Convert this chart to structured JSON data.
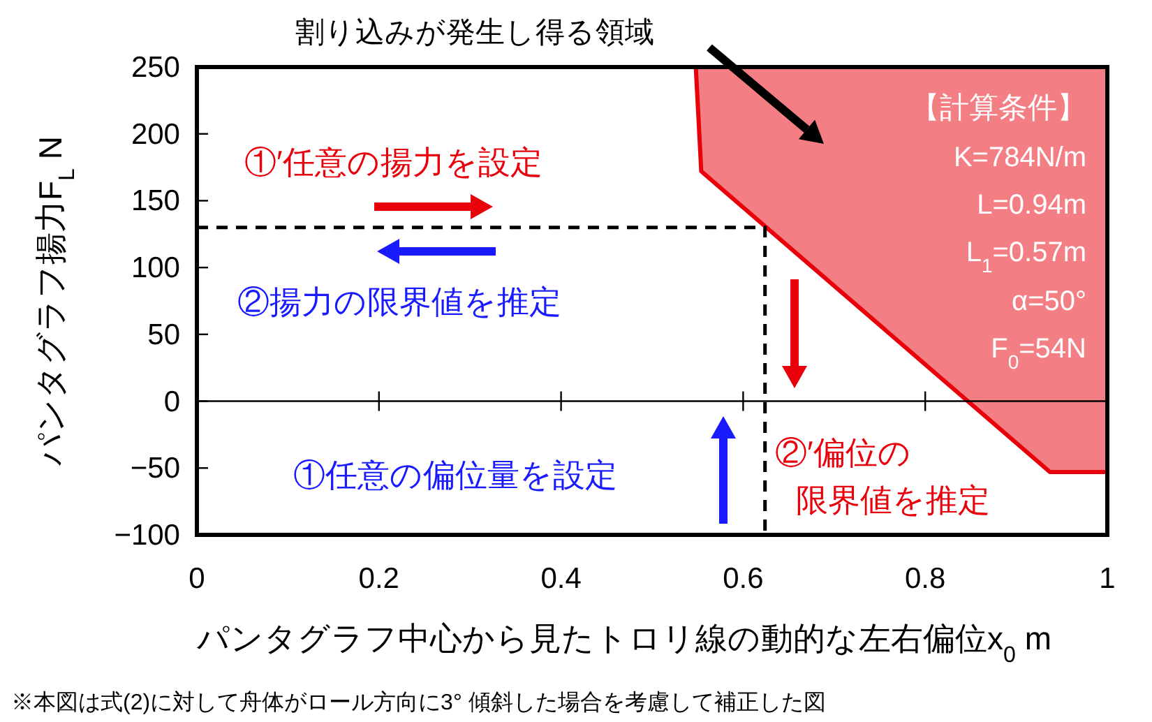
{
  "chart_data": {
    "type": "line",
    "xlabel": "パンタグラフ中心から見たトロリ線の動的な左右偏位x$_{0}$ m",
    "ylabel": "パンタグラフ揚力F$_{L}$ N",
    "xlim": [
      0,
      1
    ],
    "xticks": [
      0,
      0.2,
      0.4,
      0.6,
      0.8,
      1
    ],
    "ylim": [
      -100,
      250
    ],
    "yticks": [
      -100,
      -50,
      0,
      50,
      100,
      150,
      200,
      250
    ],
    "marker": "none",
    "series": [
      {
        "type": "line",
        "color": "#e8000b",
        "x": [
          0.548,
          0.554,
          0.937,
          1.0
        ],
        "values": [
          250,
          172,
          -53,
          -53
        ],
        "lower": [
          250,
          172,
          -53,
          -53
        ],
        "upper": [
          250,
          250,
          250,
          250
        ],
        "line_style": "solid"
      },
      {
        "type": "line",
        "color": "#000000",
        "x": [
          0,
          0.624,
          0.624
        ],
        "values": [
          130,
          130,
          -100
        ],
        "line_style": "dashed"
      }
    ],
    "annotations": [
      "割り込みが発生し得る領域",
      "①′任意の揚力を設定",
      "②揚力の限界値を推定",
      "①任意の偏位量を設定",
      "②′偏位の",
      "限界値を推定",
      "【計算条件】",
      "K=784N/m",
      "L=0.94m",
      "L$_{1}$=0.57m",
      "α=50°",
      "F$_{0}$=54N",
      "※本図は式(2)に対して舟体がロール方向に3° 傾斜した場合を考慮して補正した図"
    ]
  }
}
